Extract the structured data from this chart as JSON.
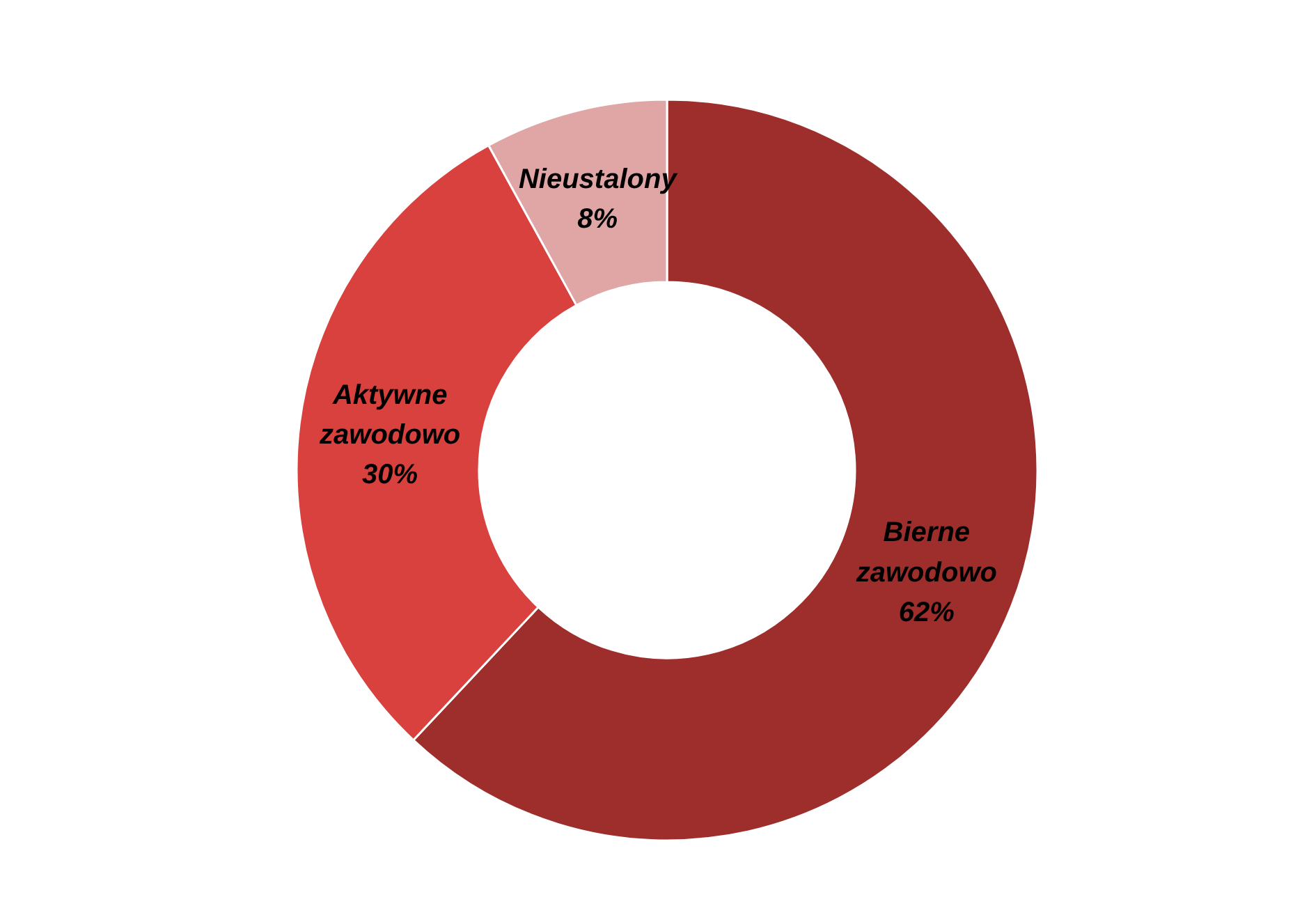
{
  "chart_data": {
    "type": "donut",
    "categories": [
      "Bierne zawodowo",
      "Aktywne zawodowo",
      "Nieustalony"
    ],
    "values": [
      62,
      30,
      8
    ],
    "value_labels": [
      "62%",
      "30%",
      "8%"
    ],
    "colors": [
      "#9e2e2c",
      "#d8413d",
      "#dfa6a5"
    ]
  }
}
